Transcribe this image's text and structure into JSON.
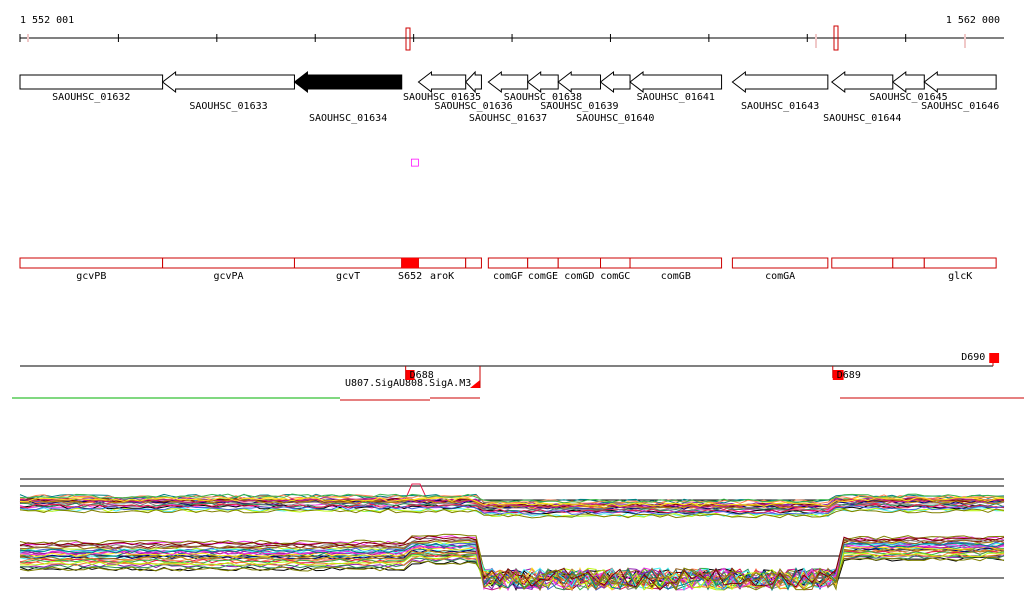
{
  "ruler": {
    "start_label": "1 552 001",
    "end_label": "1 562 000",
    "start": 1552001,
    "end": 1562000
  },
  "loci": [
    {
      "id": "SAOUHSC_01632",
      "start": 1552001,
      "end": 1553450,
      "strand": "+",
      "filled": false,
      "label_row": 0
    },
    {
      "id": "SAOUHSC_01633",
      "start": 1553450,
      "end": 1554790,
      "strand": "-",
      "filled": false,
      "label_row": 1
    },
    {
      "id": "SAOUHSC_01634",
      "start": 1554790,
      "end": 1555880,
      "strand": "-",
      "filled": true,
      "label_row": 2
    },
    {
      "id": "SAOUHSC_01635",
      "start": 1556050,
      "end": 1556530,
      "strand": "-",
      "filled": false,
      "label_row": 0
    },
    {
      "id": "SAOUHSC_01636",
      "start": 1556530,
      "end": 1556690,
      "strand": "-",
      "filled": false,
      "label_row": 1
    },
    {
      "id": "SAOUHSC_01637",
      "start": 1556760,
      "end": 1557160,
      "strand": "-",
      "filled": false,
      "label_row": 2
    },
    {
      "id": "SAOUHSC_01638",
      "start": 1557160,
      "end": 1557470,
      "strand": "-",
      "filled": false,
      "label_row": 0
    },
    {
      "id": "SAOUHSC_01639",
      "start": 1557470,
      "end": 1557900,
      "strand": "-",
      "filled": false,
      "label_row": 1
    },
    {
      "id": "SAOUHSC_01640",
      "start": 1557900,
      "end": 1558200,
      "strand": "-",
      "filled": false,
      "label_row": 2
    },
    {
      "id": "SAOUHSC_01641",
      "start": 1558200,
      "end": 1559130,
      "strand": "-",
      "filled": false,
      "label_row": 0
    },
    {
      "id": "SAOUHSC_01643",
      "start": 1559240,
      "end": 1560210,
      "strand": "-",
      "filled": false,
      "label_row": 1
    },
    {
      "id": "SAOUHSC_01644",
      "start": 1560250,
      "end": 1560870,
      "strand": "-",
      "filled": false,
      "label_row": 2
    },
    {
      "id": "SAOUHSC_01645",
      "start": 1560870,
      "end": 1561190,
      "strand": "-",
      "filled": false,
      "label_row": 0
    },
    {
      "id": "SAOUHSC_01646",
      "start": 1561190,
      "end": 1561920,
      "strand": "-",
      "filled": false,
      "label_row": 1
    }
  ],
  "gene_names": [
    {
      "name": "gcvPB",
      "start": 1552001,
      "end": 1553450
    },
    {
      "name": "gcvPA",
      "start": 1553450,
      "end": 1554790
    },
    {
      "name": "gcvT",
      "start": 1554790,
      "end": 1555880
    },
    {
      "name": "S652",
      "start": 1555880,
      "end": 1556050
    },
    {
      "name": "aroK",
      "start": 1556050,
      "end": 1556530
    },
    {
      "name": "",
      "start": 1556530,
      "end": 1556690
    },
    {
      "name": "comGF",
      "start": 1556760,
      "end": 1557160
    },
    {
      "name": "comGE",
      "start": 1557160,
      "end": 1557470
    },
    {
      "name": "comGD",
      "start": 1557470,
      "end": 1557900
    },
    {
      "name": "comGC",
      "start": 1557900,
      "end": 1558200
    },
    {
      "name": "comGB",
      "start": 1558200,
      "end": 1559130
    },
    {
      "name": "comGA",
      "start": 1559240,
      "end": 1560210
    },
    {
      "name": "",
      "start": 1560250,
      "end": 1560870
    },
    {
      "name": "",
      "start": 1560870,
      "end": 1561190
    },
    {
      "name": "glcK",
      "start": 1561190,
      "end": 1561920
    }
  ],
  "features": [
    {
      "label": "S652",
      "start": 1555880,
      "end": 1556050
    },
    {
      "label": "D688",
      "start": 1555920,
      "end": 1556010
    },
    {
      "label": "D689",
      "start": 1560260,
      "end": 1560370
    },
    {
      "label": "D690",
      "start": 1561850,
      "end": 1561950
    }
  ],
  "feature_label": "U807.SigA",
  "feature_label_2": "U808.SigA.M3",
  "marker_label": "□",
  "colors": {
    "gene": "#cc0000",
    "feature": "#ff0000",
    "accent": "#ff00ff",
    "green": "#00b000"
  }
}
